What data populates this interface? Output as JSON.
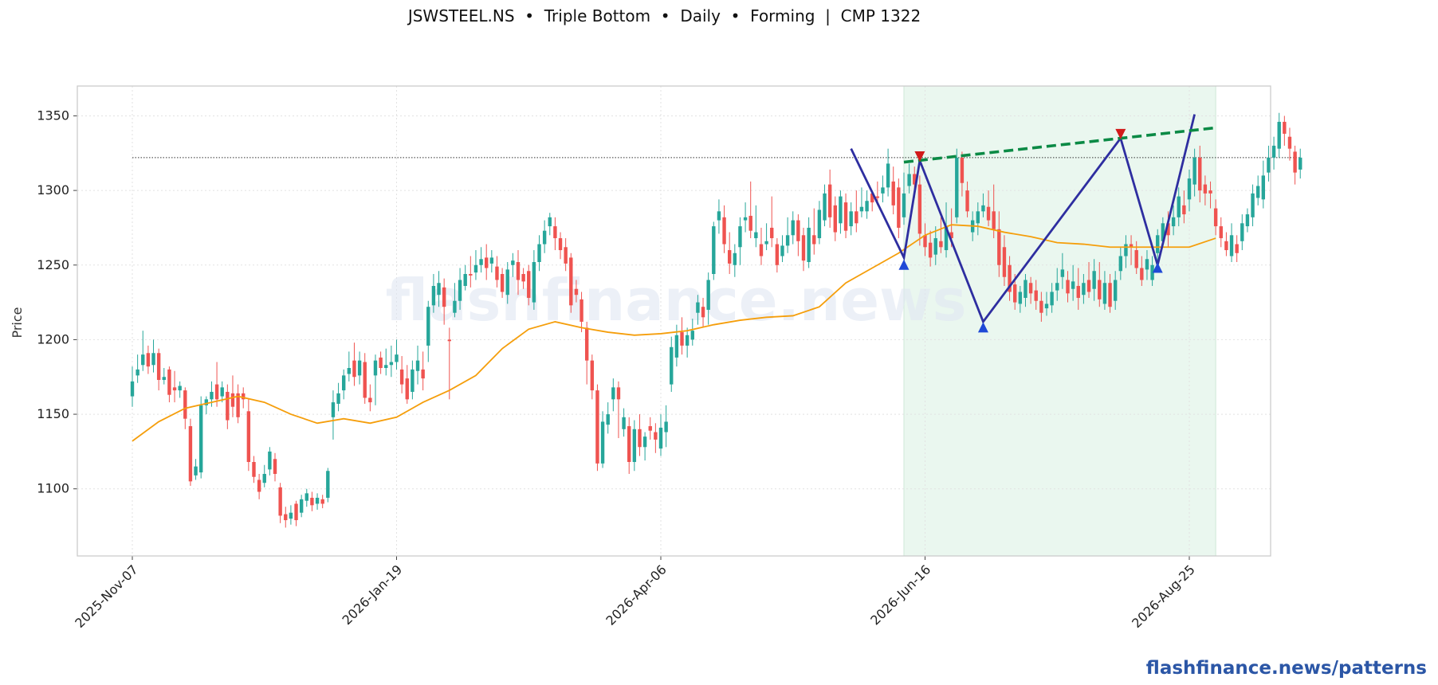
{
  "chart_data": {
    "type": "candlestick",
    "title": "JSWSTEEL.NS  •  Triple Bottom  •  Daily  •  Forming  |  CMP 1322",
    "ylabel": "Price",
    "xlabel": "",
    "watermark": "flashfinance.news",
    "footer_link": "flashfinance.news/patterns",
    "ylim": [
      1055,
      1370
    ],
    "y_ticks": [
      1100,
      1150,
      1200,
      1250,
      1300,
      1350
    ],
    "x_ticks": [
      {
        "index": 0,
        "label": "2025-Nov-07"
      },
      {
        "index": 50,
        "label": "2026-Jan-19"
      },
      {
        "index": 100,
        "label": "2026-Apr-06"
      },
      {
        "index": 150,
        "label": "2026-Jun-16"
      },
      {
        "index": 200,
        "label": "2026-Aug-25"
      }
    ],
    "grid": true,
    "colors": {
      "up": "#26a69a",
      "down": "#ef5350",
      "ma": "#f59e0b",
      "pattern": "#2e2ea0",
      "neckline": "#0b8a45",
      "region": "#e3f4ea"
    },
    "cmp_line": 1322,
    "pattern_region": [
      146,
      205
    ],
    "zigzag": [
      [
        136,
        1328
      ],
      [
        146,
        1255
      ],
      [
        149,
        1320
      ],
      [
        161,
        1212
      ],
      [
        187,
        1335
      ],
      [
        194,
        1250
      ],
      [
        201,
        1351
      ]
    ],
    "troughs": [
      [
        146,
        1250
      ],
      [
        161,
        1208
      ],
      [
        194,
        1248
      ]
    ],
    "peaks": [
      [
        149,
        1323
      ],
      [
        187,
        1338
      ]
    ],
    "neckline": [
      [
        146,
        1319
      ],
      [
        205,
        1342
      ]
    ],
    "ma_series": [
      [
        0,
        1132
      ],
      [
        5,
        1145
      ],
      [
        10,
        1154
      ],
      [
        15,
        1158
      ],
      [
        20,
        1162
      ],
      [
        25,
        1158
      ],
      [
        30,
        1150
      ],
      [
        35,
        1144
      ],
      [
        40,
        1147
      ],
      [
        45,
        1144
      ],
      [
        50,
        1148
      ],
      [
        55,
        1158
      ],
      [
        60,
        1166
      ],
      [
        65,
        1176
      ],
      [
        70,
        1194
      ],
      [
        75,
        1207
      ],
      [
        80,
        1212
      ],
      [
        85,
        1208
      ],
      [
        90,
        1205
      ],
      [
        95,
        1203
      ],
      [
        100,
        1204
      ],
      [
        105,
        1206
      ],
      [
        110,
        1210
      ],
      [
        115,
        1213
      ],
      [
        120,
        1215
      ],
      [
        125,
        1216
      ],
      [
        130,
        1222
      ],
      [
        135,
        1238
      ],
      [
        140,
        1248
      ],
      [
        145,
        1258
      ],
      [
        150,
        1270
      ],
      [
        155,
        1277
      ],
      [
        160,
        1276
      ],
      [
        165,
        1272
      ],
      [
        170,
        1269
      ],
      [
        175,
        1265
      ],
      [
        180,
        1264
      ],
      [
        185,
        1262
      ],
      [
        190,
        1262
      ],
      [
        195,
        1262
      ],
      [
        200,
        1262
      ],
      [
        205,
        1268
      ]
    ],
    "candles": [
      [
        1162,
        1172,
        1182,
        1155
      ],
      [
        1176,
        1180,
        1190,
        1171
      ],
      [
        1183,
        1190,
        1206,
        1179
      ],
      [
        1191,
        1182,
        1196,
        1177
      ],
      [
        1183,
        1191,
        1200,
        1178
      ],
      [
        1191,
        1173,
        1194,
        1166
      ],
      [
        1173,
        1175,
        1181,
        1170
      ],
      [
        1180,
        1163,
        1182,
        1158
      ],
      [
        1168,
        1166,
        1179,
        1158
      ],
      [
        1166,
        1169,
        1172,
        1161
      ],
      [
        1166,
        1147,
        1168,
        1140
      ],
      [
        1142,
        1105,
        1147,
        1102
      ],
      [
        1109,
        1115,
        1120,
        1106
      ],
      [
        1111,
        1156,
        1162,
        1107
      ],
      [
        1156,
        1160,
        1162,
        1150
      ],
      [
        1160,
        1165,
        1172,
        1155
      ],
      [
        1170,
        1160,
        1185,
        1155
      ],
      [
        1162,
        1168,
        1172,
        1158
      ],
      [
        1165,
        1146,
        1170,
        1140
      ],
      [
        1164,
        1155,
        1176,
        1148
      ],
      [
        1164,
        1148,
        1170,
        1144
      ],
      [
        1164,
        1160,
        1168,
        1154
      ],
      [
        1152,
        1118,
        1160,
        1112
      ],
      [
        1118,
        1108,
        1122,
        1104
      ],
      [
        1106,
        1098,
        1110,
        1093
      ],
      [
        1104,
        1110,
        1116,
        1101
      ],
      [
        1113,
        1125,
        1128,
        1109
      ],
      [
        1120,
        1110,
        1124,
        1105
      ],
      [
        1101,
        1082,
        1104,
        1077
      ],
      [
        1083,
        1079,
        1088,
        1074
      ],
      [
        1080,
        1084,
        1089,
        1076
      ],
      [
        1090,
        1079,
        1092,
        1075
      ],
      [
        1084,
        1093,
        1096,
        1081
      ],
      [
        1092,
        1097,
        1100,
        1088
      ],
      [
        1094,
        1089,
        1098,
        1085
      ],
      [
        1090,
        1094,
        1097,
        1086
      ],
      [
        1093,
        1090,
        1096,
        1087
      ],
      [
        1094,
        1112,
        1114,
        1091
      ],
      [
        1148,
        1158,
        1166,
        1133
      ],
      [
        1157,
        1164,
        1171,
        1152
      ],
      [
        1166,
        1176,
        1180,
        1160
      ],
      [
        1177,
        1181,
        1192,
        1172
      ],
      [
        1186,
        1175,
        1198,
        1169
      ],
      [
        1176,
        1186,
        1192,
        1170
      ],
      [
        1185,
        1161,
        1191,
        1157
      ],
      [
        1161,
        1158,
        1170,
        1152
      ],
      [
        1176,
        1186,
        1190,
        1156
      ],
      [
        1188,
        1181,
        1192,
        1177
      ],
      [
        1181,
        1183,
        1194,
        1176
      ],
      [
        1183,
        1185,
        1196,
        1175
      ],
      [
        1185,
        1190,
        1200,
        1180
      ],
      [
        1180,
        1170,
        1189,
        1164
      ],
      [
        1174,
        1160,
        1183,
        1157
      ],
      [
        1165,
        1180,
        1186,
        1160
      ],
      [
        1179,
        1186,
        1196,
        1170
      ],
      [
        1180,
        1174,
        1192,
        1166
      ],
      [
        1196,
        1222,
        1226,
        1185
      ],
      [
        1223,
        1236,
        1244,
        1218
      ],
      [
        1230,
        1238,
        1246,
        1222
      ],
      [
        1235,
        1222,
        1241,
        1210
      ],
      [
        1200,
        1199,
        1208,
        1160
      ],
      [
        1218,
        1226,
        1238,
        1215
      ],
      [
        1226,
        1240,
        1248,
        1220
      ],
      [
        1236,
        1244,
        1250,
        1233
      ],
      [
        1244,
        1243,
        1256,
        1235
      ],
      [
        1245,
        1250,
        1260,
        1240
      ],
      [
        1250,
        1254,
        1262,
        1245
      ],
      [
        1255,
        1248,
        1264,
        1240
      ],
      [
        1251,
        1255,
        1260,
        1245
      ],
      [
        1249,
        1240,
        1256,
        1235
      ],
      [
        1244,
        1232,
        1248,
        1228
      ],
      [
        1230,
        1247,
        1252,
        1224
      ],
      [
        1250,
        1253,
        1258,
        1242
      ],
      [
        1252,
        1240,
        1260,
        1230
      ],
      [
        1244,
        1239,
        1248,
        1234
      ],
      [
        1246,
        1228,
        1250,
        1223
      ],
      [
        1225,
        1252,
        1260,
        1220
      ],
      [
        1252,
        1264,
        1270,
        1246
      ],
      [
        1264,
        1273,
        1280,
        1258
      ],
      [
        1276,
        1282,
        1285,
        1270
      ],
      [
        1276,
        1268,
        1282,
        1260
      ],
      [
        1268,
        1260,
        1272,
        1254
      ],
      [
        1262,
        1251,
        1268,
        1246
      ],
      [
        1255,
        1223,
        1258,
        1218
      ],
      [
        1234,
        1230,
        1240,
        1225
      ],
      [
        1227,
        1212,
        1232,
        1205
      ],
      [
        1208,
        1186,
        1212,
        1170
      ],
      [
        1186,
        1166,
        1190,
        1160
      ],
      [
        1166,
        1117,
        1170,
        1112
      ],
      [
        1117,
        1145,
        1152,
        1114
      ],
      [
        1143,
        1150,
        1158,
        1137
      ],
      [
        1160,
        1168,
        1174,
        1152
      ],
      [
        1168,
        1160,
        1172,
        1134
      ],
      [
        1140,
        1148,
        1154,
        1135
      ],
      [
        1142,
        1118,
        1148,
        1110
      ],
      [
        1118,
        1140,
        1146,
        1112
      ],
      [
        1140,
        1128,
        1150,
        1122
      ],
      [
        1128,
        1135,
        1138,
        1119
      ],
      [
        1142,
        1139,
        1148,
        1133
      ],
      [
        1138,
        1133,
        1144,
        1124
      ],
      [
        1127,
        1141,
        1150,
        1122
      ],
      [
        1138,
        1145,
        1156,
        1128
      ],
      [
        1170,
        1195,
        1202,
        1165
      ],
      [
        1188,
        1203,
        1210,
        1182
      ],
      [
        1205,
        1196,
        1215,
        1190
      ],
      [
        1196,
        1203,
        1208,
        1188
      ],
      [
        1200,
        1206,
        1214,
        1196
      ],
      [
        1218,
        1225,
        1230,
        1210
      ],
      [
        1222,
        1215,
        1228,
        1208
      ],
      [
        1220,
        1240,
        1245,
        1210
      ],
      [
        1244,
        1276,
        1279,
        1240
      ],
      [
        1280,
        1286,
        1294,
        1271
      ],
      [
        1282,
        1264,
        1290,
        1258
      ],
      [
        1260,
        1251,
        1272,
        1244
      ],
      [
        1250,
        1258,
        1264,
        1242
      ],
      [
        1262,
        1276,
        1282,
        1250
      ],
      [
        1280,
        1282,
        1292,
        1272
      ],
      [
        1283,
        1273,
        1306,
        1268
      ],
      [
        1268,
        1272,
        1290,
        1262
      ],
      [
        1264,
        1256,
        1275,
        1250
      ],
      [
        1264,
        1266,
        1278,
        1260
      ],
      [
        1275,
        1268,
        1296,
        1262
      ],
      [
        1264,
        1250,
        1268,
        1245
      ],
      [
        1256,
        1263,
        1270,
        1252
      ],
      [
        1263,
        1270,
        1282,
        1258
      ],
      [
        1270,
        1280,
        1286,
        1264
      ],
      [
        1280,
        1266,
        1284,
        1256
      ],
      [
        1270,
        1253,
        1275,
        1246
      ],
      [
        1252,
        1275,
        1282,
        1248
      ],
      [
        1270,
        1264,
        1288,
        1257
      ],
      [
        1268,
        1287,
        1293,
        1264
      ],
      [
        1280,
        1298,
        1304,
        1276
      ],
      [
        1304,
        1282,
        1314,
        1275
      ],
      [
        1290,
        1272,
        1296,
        1266
      ],
      [
        1278,
        1296,
        1300,
        1271
      ],
      [
        1292,
        1273,
        1298,
        1268
      ],
      [
        1276,
        1286,
        1292,
        1270
      ],
      [
        1286,
        1278,
        1300,
        1272
      ],
      [
        1286,
        1289,
        1302,
        1282
      ],
      [
        1286,
        1293,
        1300,
        1281
      ],
      [
        1298,
        1292,
        1300,
        1286
      ],
      [
        1296,
        1295,
        1306,
        1290
      ],
      [
        1298,
        1302,
        1310,
        1292
      ],
      [
        1302,
        1318,
        1328,
        1296
      ],
      [
        1306,
        1290,
        1316,
        1284
      ],
      [
        1302,
        1275,
        1308,
        1268
      ],
      [
        1282,
        1298,
        1312,
        1277
      ],
      [
        1303,
        1311,
        1318,
        1298
      ],
      [
        1311,
        1304,
        1316,
        1295
      ],
      [
        1304,
        1271,
        1310,
        1263
      ],
      [
        1270,
        1262,
        1278,
        1256
      ],
      [
        1265,
        1255,
        1273,
        1249
      ],
      [
        1257,
        1268,
        1276,
        1250
      ],
      [
        1266,
        1262,
        1282,
        1258
      ],
      [
        1260,
        1276,
        1292,
        1255
      ],
      [
        1272,
        1268,
        1288,
        1262
      ],
      [
        1282,
        1322,
        1328,
        1278
      ],
      [
        1322,
        1305,
        1326,
        1296
      ],
      [
        1300,
        1286,
        1306,
        1282
      ],
      [
        1272,
        1280,
        1286,
        1266
      ],
      [
        1278,
        1286,
        1292,
        1270
      ],
      [
        1286,
        1290,
        1298,
        1282
      ],
      [
        1289,
        1280,
        1300,
        1276
      ],
      [
        1286,
        1274,
        1304,
        1268
      ],
      [
        1274,
        1250,
        1286,
        1242
      ],
      [
        1262,
        1242,
        1270,
        1236
      ],
      [
        1250,
        1232,
        1256,
        1226
      ],
      [
        1237,
        1225,
        1244,
        1220
      ],
      [
        1224,
        1232,
        1236,
        1218
      ],
      [
        1228,
        1240,
        1244,
        1222
      ],
      [
        1238,
        1231,
        1242,
        1224
      ],
      [
        1233,
        1226,
        1240,
        1220
      ],
      [
        1226,
        1218,
        1232,
        1212
      ],
      [
        1221,
        1224,
        1232,
        1216
      ],
      [
        1223,
        1232,
        1238,
        1218
      ],
      [
        1233,
        1238,
        1248,
        1226
      ],
      [
        1242,
        1247,
        1258,
        1234
      ],
      [
        1240,
        1231,
        1246,
        1225
      ],
      [
        1234,
        1239,
        1250,
        1226
      ],
      [
        1236,
        1228,
        1248,
        1220
      ],
      [
        1230,
        1238,
        1244,
        1224
      ],
      [
        1240,
        1232,
        1252,
        1228
      ],
      [
        1234,
        1246,
        1254,
        1226
      ],
      [
        1240,
        1227,
        1252,
        1222
      ],
      [
        1224,
        1238,
        1246,
        1220
      ],
      [
        1238,
        1222,
        1244,
        1218
      ],
      [
        1226,
        1240,
        1246,
        1220
      ],
      [
        1246,
        1256,
        1262,
        1240
      ],
      [
        1256,
        1264,
        1270,
        1248
      ],
      [
        1264,
        1262,
        1270,
        1250
      ],
      [
        1260,
        1248,
        1266,
        1244
      ],
      [
        1248,
        1240,
        1256,
        1236
      ],
      [
        1247,
        1254,
        1260,
        1240
      ],
      [
        1240,
        1250,
        1256,
        1236
      ],
      [
        1258,
        1270,
        1274,
        1248
      ],
      [
        1266,
        1278,
        1282,
        1262
      ],
      [
        1278,
        1270,
        1286,
        1262
      ],
      [
        1276,
        1282,
        1290,
        1270
      ],
      [
        1282,
        1296,
        1302,
        1276
      ],
      [
        1290,
        1284,
        1300,
        1278
      ],
      [
        1294,
        1308,
        1314,
        1286
      ],
      [
        1304,
        1322,
        1328,
        1296
      ],
      [
        1322,
        1300,
        1330,
        1292
      ],
      [
        1304,
        1298,
        1310,
        1290
      ],
      [
        1300,
        1298,
        1306,
        1288
      ],
      [
        1288,
        1276,
        1294,
        1270
      ],
      [
        1276,
        1268,
        1282,
        1262
      ],
      [
        1266,
        1260,
        1272,
        1256
      ],
      [
        1256,
        1270,
        1278,
        1252
      ],
      [
        1264,
        1258,
        1270,
        1252
      ],
      [
        1266,
        1278,
        1284,
        1260
      ],
      [
        1276,
        1284,
        1288,
        1272
      ],
      [
        1282,
        1298,
        1304,
        1276
      ],
      [
        1295,
        1303,
        1310,
        1290
      ],
      [
        1294,
        1310,
        1320,
        1288
      ],
      [
        1312,
        1322,
        1330,
        1306
      ],
      [
        1322,
        1330,
        1336,
        1314
      ],
      [
        1328,
        1346,
        1352,
        1322
      ],
      [
        1346,
        1338,
        1350,
        1330
      ],
      [
        1336,
        1328,
        1342,
        1320
      ],
      [
        1326,
        1312,
        1330,
        1304
      ],
      [
        1314,
        1322,
        1328,
        1308
      ]
    ]
  }
}
